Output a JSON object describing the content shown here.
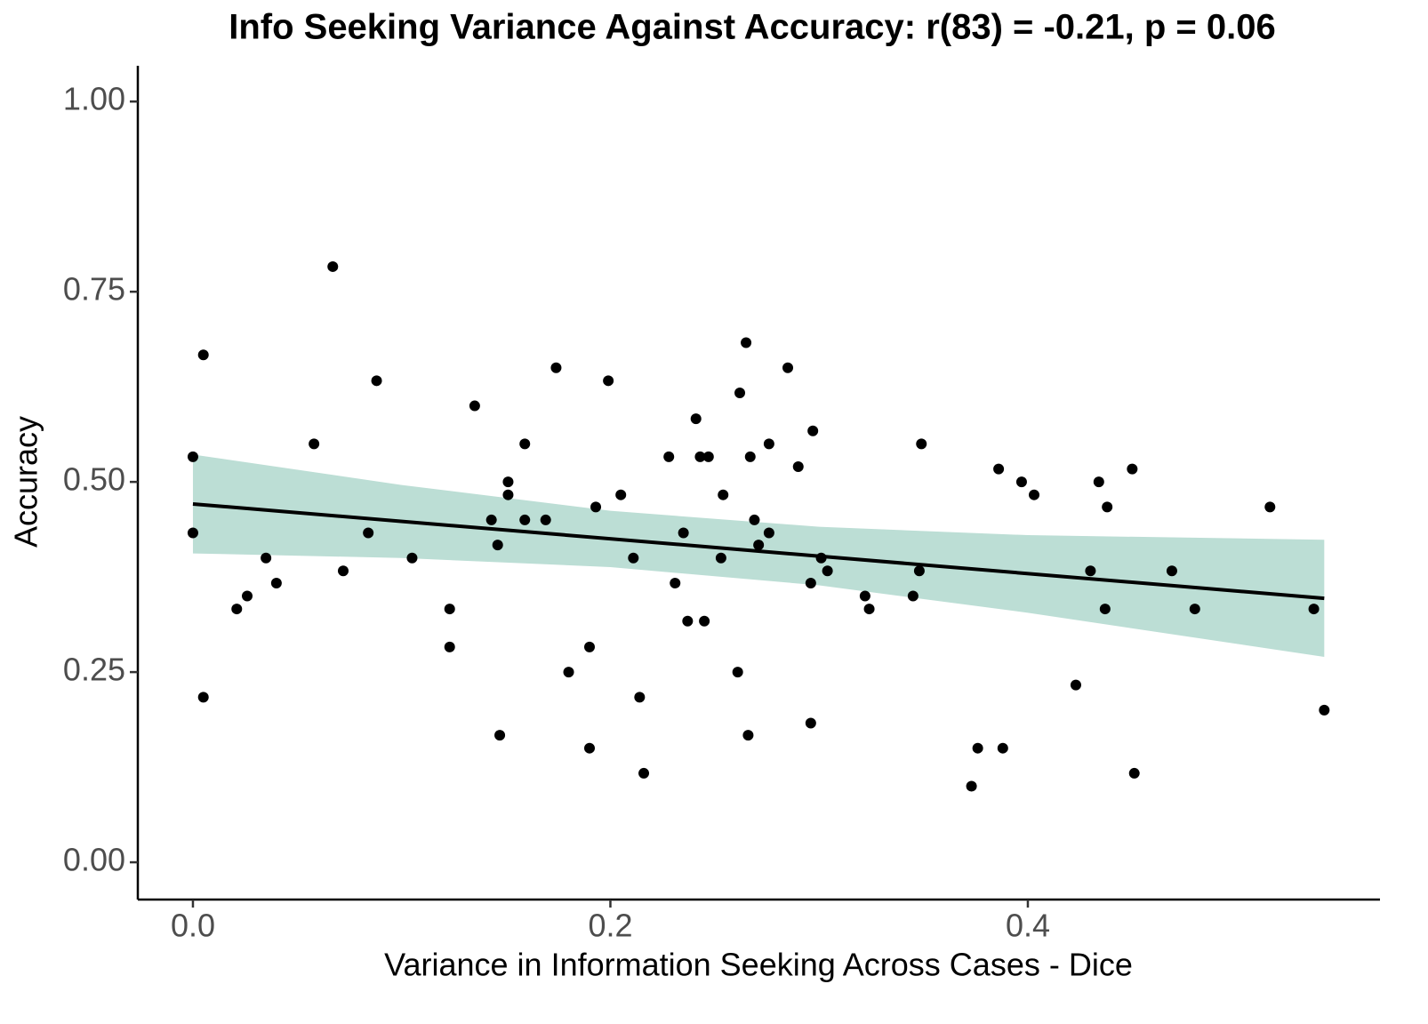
{
  "chart_data": {
    "type": "scatter",
    "title": "Info Seeking Variance Against Accuracy: r(83) = -0.21, p = 0.06",
    "x_label": "Variance in Information Seeking Across Cases -  Dice",
    "y_label": "Accuracy",
    "color": "#000000",
    "xlim": [
      -0.0264,
      0.5687
    ],
    "ylim": [
      -0.049,
      1.047
    ],
    "xticks": [
      {
        "value": 0,
        "label": "0.0"
      },
      {
        "value": 0.2,
        "label": "0.2"
      },
      {
        "value": 0.4,
        "label": "0.4"
      }
    ],
    "yticks": [
      {
        "value": 0,
        "label": "0.00"
      },
      {
        "value": 0.25,
        "label": "0.25"
      },
      {
        "value": 0.5,
        "label": "0.50"
      },
      {
        "value": 0.75,
        "label": "0.75"
      },
      {
        "value": 1,
        "label": "1.00"
      }
    ],
    "x": [
      0,
      0,
      0.005,
      0.005,
      0.021,
      0.026,
      0.035,
      0.04,
      0.058,
      0.067,
      0.072,
      0.084,
      0.088,
      0.105,
      0.123,
      0.123,
      0.135,
      0.143,
      0.146,
      0.147,
      0.151,
      0.151,
      0.159,
      0.159,
      0.169,
      0.174,
      0.18,
      0.19,
      0.19,
      0.193,
      0.199,
      0.205,
      0.211,
      0.214,
      0.216,
      0.228,
      0.231,
      0.235,
      0.237,
      0.241,
      0.243,
      0.245,
      0.247,
      0.253,
      0.254,
      0.261,
      0.262,
      0.265,
      0.266,
      0.267,
      0.269,
      0.271,
      0.276,
      0.276,
      0.285,
      0.29,
      0.296,
      0.296,
      0.297,
      0.301,
      0.304,
      0.322,
      0.324,
      0.345,
      0.348,
      0.349,
      0.373,
      0.376,
      0.386,
      0.388,
      0.397,
      0.403,
      0.423,
      0.43,
      0.434,
      0.437,
      0.438,
      0.45,
      0.451,
      0.469,
      0.48,
      0.516,
      0.537,
      0.542
    ],
    "values": [
      0.533,
      0.433,
      0.667,
      0.217,
      0.333,
      0.35,
      0.4,
      0.367,
      0.55,
      0.783,
      0.383,
      0.433,
      0.633,
      0.4,
      0.333,
      0.283,
      0.6,
      0.45,
      0.417,
      0.167,
      0.5,
      0.483,
      0.55,
      0.45,
      0.45,
      0.65,
      0.25,
      0.283,
      0.15,
      0.467,
      0.633,
      0.483,
      0.4,
      0.217,
      0.117,
      0.533,
      0.367,
      0.433,
      0.317,
      0.583,
      0.533,
      0.317,
      0.533,
      0.4,
      0.483,
      0.25,
      0.617,
      0.683,
      0.167,
      0.533,
      0.45,
      0.417,
      0.55,
      0.433,
      0.65,
      0.52,
      0.367,
      0.183,
      0.567,
      0.4,
      0.383,
      0.35,
      0.333,
      0.35,
      0.383,
      0.55,
      0.1,
      0.15,
      0.517,
      0.15,
      0.5,
      0.483,
      0.233,
      0.383,
      0.5,
      0.333,
      0.467,
      0.517,
      0.117,
      0.383,
      0.333,
      0.467,
      0.333,
      0.2
    ],
    "fit": {
      "color": "#000000",
      "x": [
        0,
        0.542
      ],
      "values": [
        0.471,
        0.347
      ]
    },
    "band": {
      "color": "#bcded5",
      "x": [
        0,
        0.1,
        0.2,
        0.3,
        0.4,
        0.542
      ],
      "lower": [
        0.406,
        0.4,
        0.388,
        0.364,
        0.328,
        0.27
      ],
      "upper": [
        0.536,
        0.496,
        0.462,
        0.441,
        0.43,
        0.424
      ]
    }
  }
}
